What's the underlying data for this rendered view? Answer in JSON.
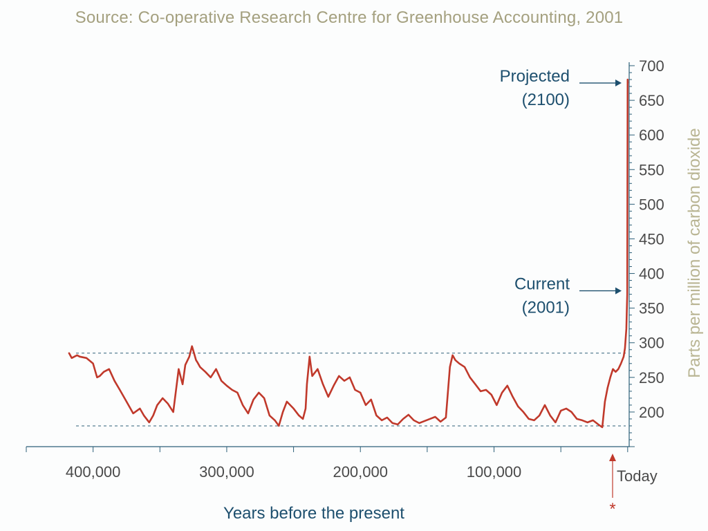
{
  "source": "Source: Co-operative Research Centre for Greenhouse Accounting, 2001",
  "colors": {
    "series": "#c0392b",
    "axis": "#2c5f78",
    "ylabel": "#b9b593",
    "ticklabel": "#4a4a4a",
    "annotation": "#1d4f6e",
    "reference": "#2c5f78"
  },
  "chart_data": {
    "type": "line",
    "title": "",
    "xlabel": "Years before the present",
    "ylabel": "Parts per million of carbon dioxide",
    "x_reversed": true,
    "xlim": [
      450000,
      -100
    ],
    "ylim": [
      150,
      705
    ],
    "x_ticks": [
      400000,
      300000,
      200000,
      100000
    ],
    "x_tick_labels": [
      "400,000",
      "300,000",
      "200,000",
      "100,000"
    ],
    "y_ticks": [
      200,
      250,
      300,
      350,
      400,
      450,
      500,
      550,
      600,
      650,
      700
    ],
    "y_tick_labels": [
      "200",
      "250",
      "300",
      "350",
      "400",
      "450",
      "500",
      "550",
      "600",
      "650",
      "700"
    ],
    "reference_lines": [
      285,
      180
    ],
    "series": [
      {
        "x": [
          418000,
          416000,
          412000,
          410000,
          405000,
          400000,
          397000,
          395000,
          392000,
          388000,
          384000,
          380000,
          375000,
          370000,
          365000,
          362000,
          358000,
          355000,
          352000,
          348000,
          344000,
          340000,
          336000,
          333000,
          331000,
          328000,
          326000,
          324000,
          323000,
          322000,
          320000,
          316000,
          312000,
          308000,
          304000,
          300000,
          296000,
          292000,
          288000,
          284000,
          280000,
          276000,
          272000,
          268000,
          264000,
          261000,
          258000,
          255000,
          250000,
          246000,
          243000,
          241000,
          240000,
          238000,
          236000,
          232000,
          228000,
          224000,
          220000,
          216000,
          212000,
          208000,
          204000,
          200000,
          196000,
          192000,
          188000,
          184000,
          180000,
          176000,
          172000,
          168000,
          164000,
          160000,
          156000,
          152000,
          148000,
          144000,
          140000,
          136000,
          133000,
          131000,
          129000,
          126000,
          122000,
          118000,
          114000,
          110000,
          106000,
          102000,
          98000,
          94000,
          90000,
          86000,
          82000,
          78000,
          74000,
          70000,
          66000,
          62000,
          58000,
          54000,
          50000,
          46000,
          42000,
          38000,
          34000,
          30000,
          26000,
          22000,
          19000,
          17000,
          15000,
          13000,
          11000,
          9000,
          7000,
          5000,
          3000,
          2000,
          1000,
          300,
          0,
          -100
        ],
        "y": [
          285,
          278,
          282,
          280,
          278,
          270,
          250,
          252,
          258,
          262,
          245,
          232,
          215,
          198,
          205,
          195,
          185,
          195,
          210,
          220,
          212,
          200,
          262,
          240,
          268,
          280,
          295,
          282,
          275,
          272,
          265,
          258,
          250,
          262,
          245,
          238,
          232,
          228,
          210,
          198,
          218,
          228,
          220,
          195,
          188,
          180,
          200,
          215,
          205,
          195,
          190,
          205,
          240,
          280,
          252,
          262,
          240,
          222,
          238,
          252,
          245,
          250,
          232,
          228,
          210,
          218,
          195,
          188,
          192,
          184,
          182,
          190,
          196,
          188,
          184,
          187,
          190,
          193,
          186,
          192,
          265,
          282,
          275,
          270,
          265,
          250,
          240,
          230,
          232,
          225,
          210,
          228,
          238,
          222,
          208,
          200,
          190,
          188,
          195,
          210,
          195,
          185,
          202,
          205,
          200,
          190,
          188,
          185,
          188,
          182,
          178,
          215,
          235,
          250,
          262,
          258,
          262,
          270,
          280,
          292,
          320,
          370,
          680,
          675
        ]
      }
    ],
    "annotations": [
      {
        "lines": [
          "Projected",
          "(2100)"
        ],
        "x": -100,
        "y": 675
      },
      {
        "lines": [
          "Current",
          "(2001)"
        ],
        "x": 300,
        "y": 375
      }
    ],
    "today_label": "Today"
  }
}
